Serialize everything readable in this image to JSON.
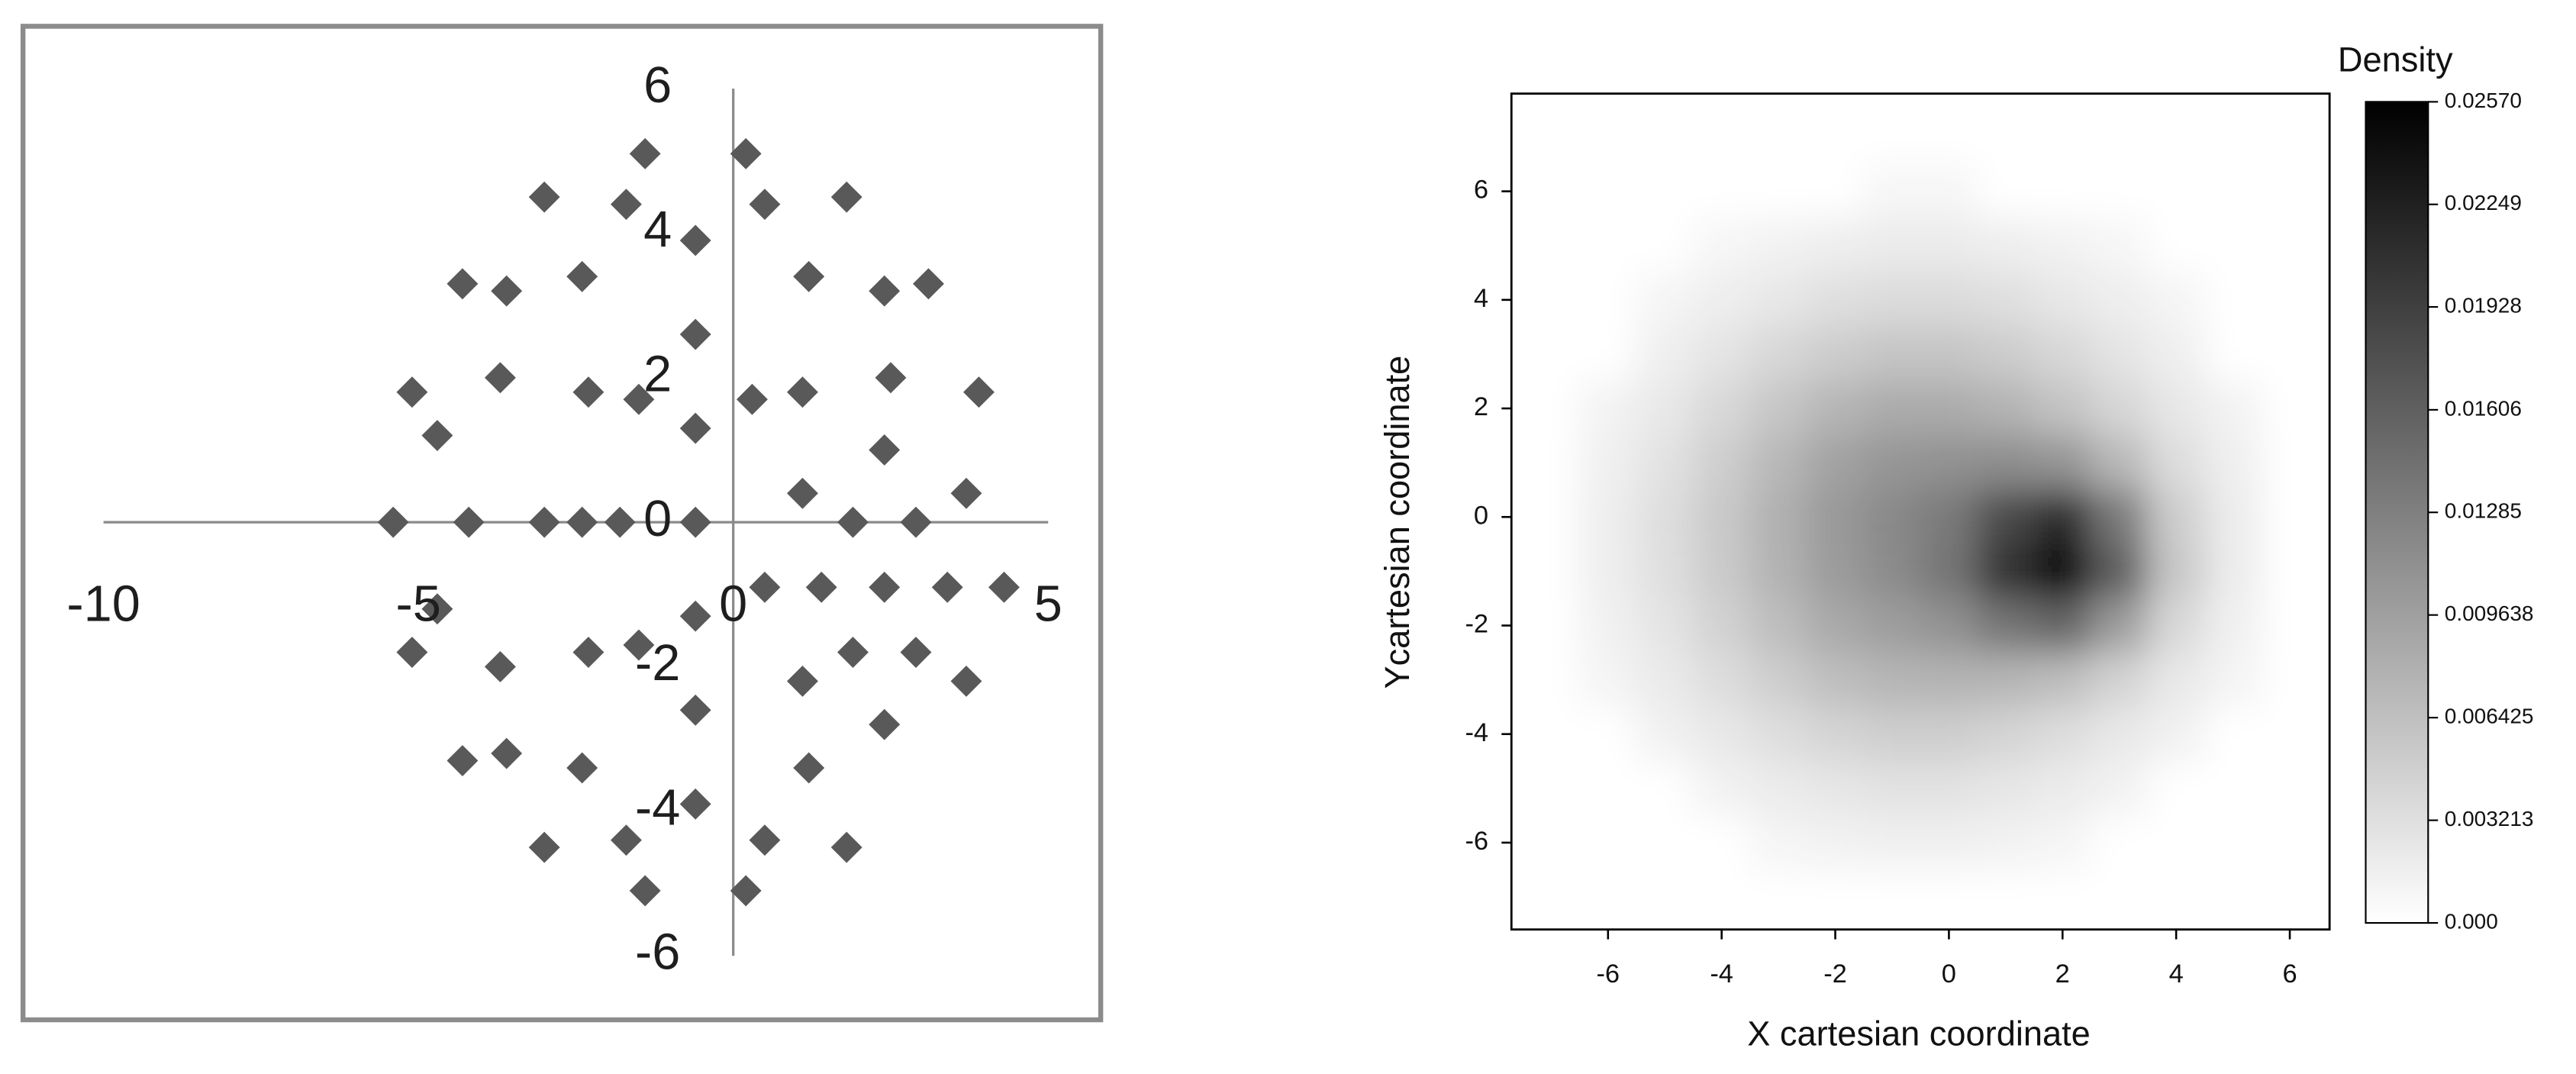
{
  "chart_data": [
    {
      "type": "scatter",
      "color": "#595959",
      "marker": "diamond",
      "xlim": [
        -10,
        5
      ],
      "ylim": [
        -6,
        6
      ],
      "xticks": [
        -10,
        -5,
        0,
        5
      ],
      "yticks": [
        -6,
        -4,
        -2,
        0,
        2,
        4,
        6
      ],
      "x": [
        3.9,
        3.1,
        1.8,
        0.2,
        -1.4,
        -3.0,
        -4.3,
        -5.1,
        -5.4,
        -5.1,
        -4.3,
        -3.0,
        -1.4,
        0.2,
        1.8,
        2.5,
        1.2,
        -0.6,
        -2.4,
        -3.7,
        -4.2,
        -3.7,
        -2.4,
        -0.6,
        1.2,
        1.1,
        -0.6,
        -2.3,
        -3.0,
        -2.3,
        -0.6,
        0.3,
        -1.5,
        -2.4,
        -1.5,
        -0.6,
        -1.8,
        -0.6,
        -0.6,
        2.4,
        3.4,
        2.9,
        1.9,
        1.4,
        1.9,
        2.9,
        4.3,
        3.7,
        2.4,
        1.1,
        0.5,
        1.1,
        2.4,
        3.7,
        2.4,
        0.5,
        -1.7,
        -3.6,
        -4.7,
        -4.7,
        -3.6,
        -1.7,
        0.5
      ],
      "values": [
        1.8,
        3.3,
        4.5,
        5.1,
        5.1,
        4.5,
        3.3,
        1.8,
        0,
        -1.8,
        -3.3,
        -4.5,
        -5.1,
        -5.1,
        -4.5,
        2.0,
        3.4,
        3.9,
        3.4,
        2.0,
        0,
        -2.0,
        -3.4,
        -3.9,
        -3.4,
        1.8,
        2.6,
        1.8,
        0,
        -1.8,
        -2.6,
        1.7,
        1.7,
        0,
        -1.7,
        1.3,
        0,
        -1.3,
        0,
        -0.9,
        -0.9,
        0.0,
        0.0,
        -0.9,
        -1.8,
        -1.8,
        -0.9,
        0.4,
        1.0,
        0.4,
        -0.9,
        -2.2,
        -2.8,
        -2.2,
        3.2,
        4.4,
        4.4,
        3.2,
        1.2,
        -1.2,
        -3.2,
        -4.4,
        -4.4
      ]
    },
    {
      "type": "contour",
      "xlabel": "X cartesian coordinate",
      "ylabel": "Ycartesian coordinate",
      "xlim": [
        -7.7,
        6.7
      ],
      "ylim": [
        -7.6,
        7.8
      ],
      "xticks": [
        -6,
        -4,
        -2,
        0,
        2,
        4,
        6
      ],
      "yticks": [
        -6,
        -4,
        -2,
        0,
        2,
        4,
        6
      ],
      "x": [
        -7,
        -6,
        -5,
        -4,
        -3,
        -2,
        -1,
        0,
        1,
        2,
        3,
        4,
        5,
        6
      ],
      "y": [
        7,
        6,
        5,
        4,
        3,
        2,
        1,
        0,
        -1,
        -2,
        -3,
        -4,
        -5,
        -6,
        -7
      ],
      "z": [
        [
          0,
          0,
          0,
          0,
          0,
          0,
          0,
          0,
          0,
          0,
          0,
          0,
          0,
          0
        ],
        [
          0,
          0,
          0,
          0,
          0,
          0,
          0.00094,
          0.00094,
          0,
          0,
          0,
          0,
          0,
          0
        ],
        [
          0,
          0,
          0,
          0.0009,
          0.00135,
          0.00174,
          0.00198,
          0.00198,
          0.00174,
          0.00135,
          0.0009,
          0,
          0,
          0
        ],
        [
          0,
          0,
          0.00102,
          0.00171,
          0.00246,
          0.00321,
          0.00363,
          0.00363,
          0.00321,
          0.00246,
          0.00171,
          0.00102,
          0,
          0
        ],
        [
          0,
          0,
          0.00165,
          0.00274,
          0.00402,
          0.00519,
          0.00589,
          0.00589,
          0.00519,
          0.00402,
          0.00274,
          0.00165,
          0,
          0
        ],
        [
          0,
          0.00124,
          0.00235,
          0.00392,
          0.00574,
          0.00742,
          0.00842,
          0.00847,
          0.00762,
          0.00609,
          0.00413,
          0.00241,
          0.00124,
          0
        ],
        [
          0,
          0.00156,
          0.00296,
          0.00493,
          0.00723,
          0.00933,
          0.01064,
          0.01109,
          0.01151,
          0.01083,
          0.00711,
          0.00345,
          0.0016,
          0
        ],
        [
          0,
          0.00173,
          0.00328,
          0.00546,
          0.00801,
          0.01033,
          0.01188,
          0.01352,
          0.01836,
          0.02123,
          0.0135,
          0.00506,
          0.00188,
          0
        ],
        [
          0,
          0.00169,
          0.0032,
          0.00532,
          0.00781,
          0.01008,
          0.01165,
          0.01387,
          0.02091,
          0.02564,
          0.01616,
          0.00562,
          0.00189,
          0
        ],
        [
          0,
          0.00145,
          0.00274,
          0.00457,
          0.0067,
          0.00865,
          0.00992,
          0.01102,
          0.01402,
          0.01555,
          0.00993,
          0.00394,
          0.00155,
          0
        ],
        [
          0,
          0.0011,
          0.00207,
          0.00345,
          0.00506,
          0.00652,
          0.00744,
          0.00764,
          0.0075,
          0.00668,
          0.00443,
          0.00229,
          0.00112,
          0
        ],
        [
          0,
          0,
          0.00138,
          0.00229,
          0.00336,
          0.00433,
          0.00493,
          0.00493,
          0.00438,
          0.00347,
          0.00233,
          0.00138,
          0,
          0
        ],
        [
          0,
          0,
          0,
          0.00134,
          0.00197,
          0.00254,
          0.00289,
          0.00289,
          0.00254,
          0.00197,
          0.00134,
          0,
          0,
          0
        ],
        [
          0,
          0,
          0,
          0,
          0.00102,
          0.00131,
          0.00148,
          0.00148,
          0.00131,
          0.00102,
          0,
          0,
          0,
          0
        ],
        [
          0,
          0,
          0,
          0,
          0,
          0,
          0,
          0,
          0,
          0,
          0,
          0,
          0,
          0
        ]
      ],
      "colorbar": {
        "label": "Density",
        "clim": [
          0,
          0.0257
        ],
        "colormap": [
          "#ffffff",
          "#000000"
        ],
        "ticks": [
          {
            "value": 0,
            "label": "0.000"
          },
          0.003213,
          0.006425,
          0.009638,
          0.01285,
          0.01606,
          0.01928,
          0.02249,
          {
            "value": 0.0257,
            "label": "0.02570"
          }
        ]
      }
    }
  ]
}
